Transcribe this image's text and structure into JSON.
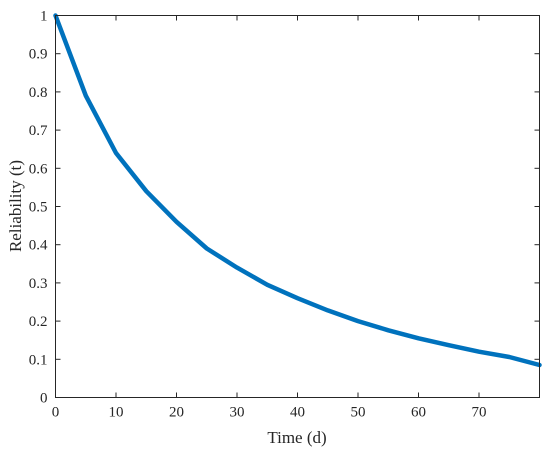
{
  "chart_data": {
    "type": "line",
    "title": "",
    "xlabel": "Time (d)",
    "ylabel": "Reliability (t)",
    "xlim": [
      0,
      80
    ],
    "ylim": [
      0,
      1
    ],
    "xticks": [
      0,
      10,
      20,
      30,
      40,
      50,
      60,
      70
    ],
    "yticks": [
      0,
      0.1,
      0.2,
      0.3,
      0.4,
      0.5,
      0.6,
      0.7,
      0.8,
      0.9,
      1
    ],
    "grid": false,
    "legend": "none",
    "series": [
      {
        "color": "#0072BD",
        "x": [
          0,
          5,
          10,
          15,
          20,
          25,
          30,
          35,
          40,
          45,
          50,
          55,
          60,
          65,
          70,
          75,
          80
        ],
        "y": [
          1.0,
          0.79,
          0.64,
          0.54,
          0.46,
          0.39,
          0.34,
          0.295,
          0.26,
          0.228,
          0.2,
          0.176,
          0.155,
          0.137,
          0.12,
          0.106,
          0.085
        ]
      }
    ]
  }
}
